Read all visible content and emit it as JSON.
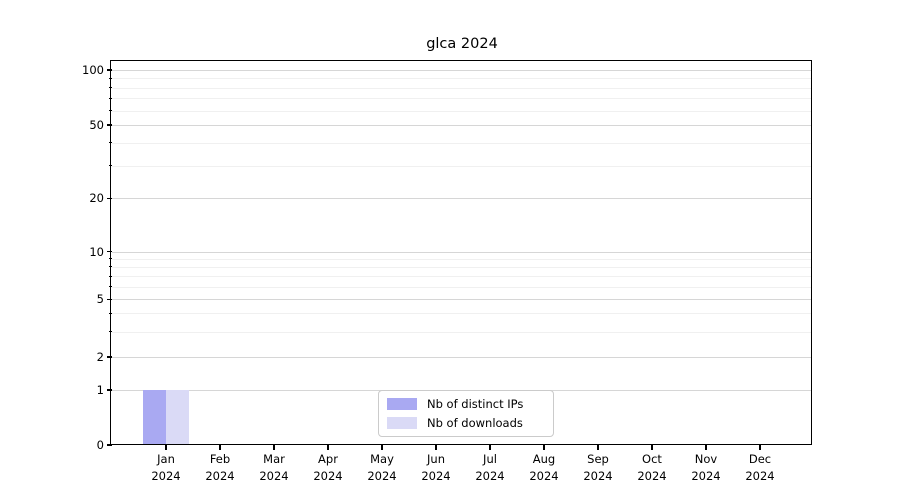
{
  "chart_data": {
    "type": "bar",
    "title": "glca 2024",
    "x_categories": [
      "Jan",
      "Feb",
      "Mar",
      "Apr",
      "May",
      "Jun",
      "Jul",
      "Aug",
      "Sep",
      "Oct",
      "Nov",
      "Dec"
    ],
    "x_year_label": "2024",
    "y_major_ticks": [
      0,
      1,
      2,
      5,
      10,
      20,
      50,
      100
    ],
    "y_minor_ticks": [
      3,
      4,
      6,
      7,
      8,
      9,
      30,
      40,
      60,
      70,
      80,
      90
    ],
    "y_scale": "symlog",
    "ylim": [
      0,
      110
    ],
    "grid": true,
    "series": [
      {
        "name": "Nb of distinct IPs",
        "key": "distinct-ips",
        "color": "#a9a9f2",
        "values": [
          1,
          0,
          0,
          0,
          0,
          0,
          0,
          0,
          0,
          0,
          0,
          0
        ]
      },
      {
        "name": "Nb of downloads",
        "key": "downloads",
        "color": "#dadaf6",
        "values": [
          1,
          0,
          0,
          0,
          0,
          0,
          0,
          0,
          0,
          0,
          0,
          0
        ]
      }
    ],
    "legend": {
      "position": "lower center",
      "entries": [
        "Nb of distinct IPs",
        "Nb of downloads"
      ]
    }
  },
  "colors": {
    "background": "#ffffff",
    "major_grid": "#d6d6d6",
    "minor_grid": "#f0f0f0",
    "axis": "#000000",
    "text": "#000000"
  }
}
